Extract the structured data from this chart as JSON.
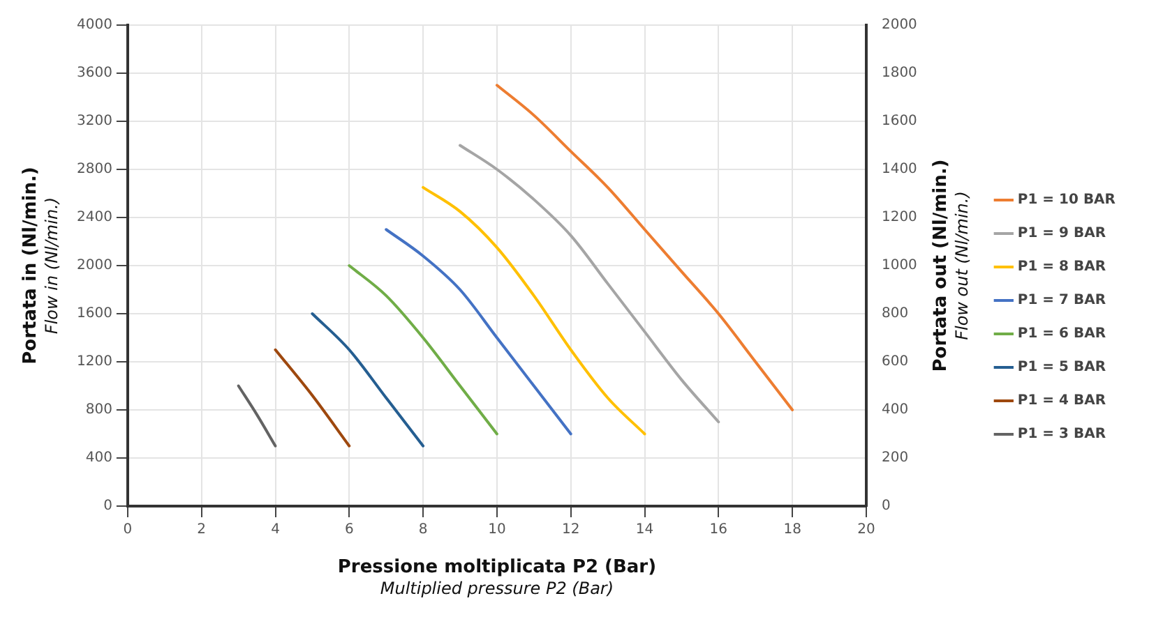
{
  "chart_data": {
    "type": "line",
    "xlabel": "Pressione moltiplicata P2 (Bar)\nMultiplied pressure P2 (Bar)",
    "ylabel": "Portata in (Nl/min.)\nFlow in (Nl/min.)",
    "y2label": "Portata out (Nl/min.)\nFlow out (Nl/min.)",
    "xlim": [
      0,
      20
    ],
    "xticks": [
      0,
      2,
      4,
      6,
      8,
      10,
      12,
      14,
      16,
      18,
      20
    ],
    "ylim": [
      0,
      4000
    ],
    "yticks": [
      0,
      400,
      800,
      1200,
      1600,
      2000,
      2400,
      2800,
      3200,
      3600,
      4000
    ],
    "y2lim": [
      0,
      2000
    ],
    "y2ticks": [
      0,
      200,
      400,
      600,
      800,
      1000,
      1200,
      1400,
      1600,
      1800,
      2000
    ],
    "grid": true,
    "legend": "right",
    "marker": "none",
    "line_style": "solid",
    "series": [
      {
        "name": "P1 = 10 BAR",
        "color": "#ed7d31",
        "x": [
          10,
          11,
          12,
          13,
          14,
          15,
          16,
          17,
          18
        ],
        "values": [
          3500,
          3250,
          2950,
          2650,
          2300,
          1950,
          1600,
          1200,
          800
        ]
      },
      {
        "name": "P1 = 9 BAR",
        "color": "#a5a5a5",
        "x": [
          9,
          10,
          11,
          12,
          13,
          14,
          15,
          16
        ],
        "values": [
          3000,
          2800,
          2550,
          2250,
          1850,
          1450,
          1050,
          700
        ]
      },
      {
        "name": "P1 = 8 BAR",
        "color": "#ffc000",
        "x": [
          8,
          9,
          10,
          11,
          12,
          13,
          14
        ],
        "values": [
          2650,
          2450,
          2150,
          1750,
          1300,
          900,
          600
        ]
      },
      {
        "name": "P1 = 7 BAR",
        "color": "#4472c4",
        "x": [
          7,
          8,
          9,
          10,
          11,
          12
        ],
        "values": [
          2300,
          2080,
          1800,
          1400,
          1000,
          600
        ]
      },
      {
        "name": "P1 = 6 BAR",
        "color": "#70ad47",
        "x": [
          6,
          7,
          8,
          9,
          10
        ],
        "values": [
          2000,
          1750,
          1400,
          1000,
          600
        ]
      },
      {
        "name": "P1 = 5 BAR",
        "color": "#255e91",
        "x": [
          5,
          6,
          7,
          8
        ],
        "values": [
          1600,
          1300,
          900,
          500
        ]
      },
      {
        "name": "P1 = 4 BAR",
        "color": "#9e480e",
        "x": [
          4,
          5,
          6
        ],
        "values": [
          1300,
          920,
          500
        ]
      },
      {
        "name": "P1 = 3 BAR",
        "color": "#636363",
        "x": [
          3,
          3.5,
          4
        ],
        "values": [
          1000,
          760,
          500
        ]
      }
    ]
  }
}
